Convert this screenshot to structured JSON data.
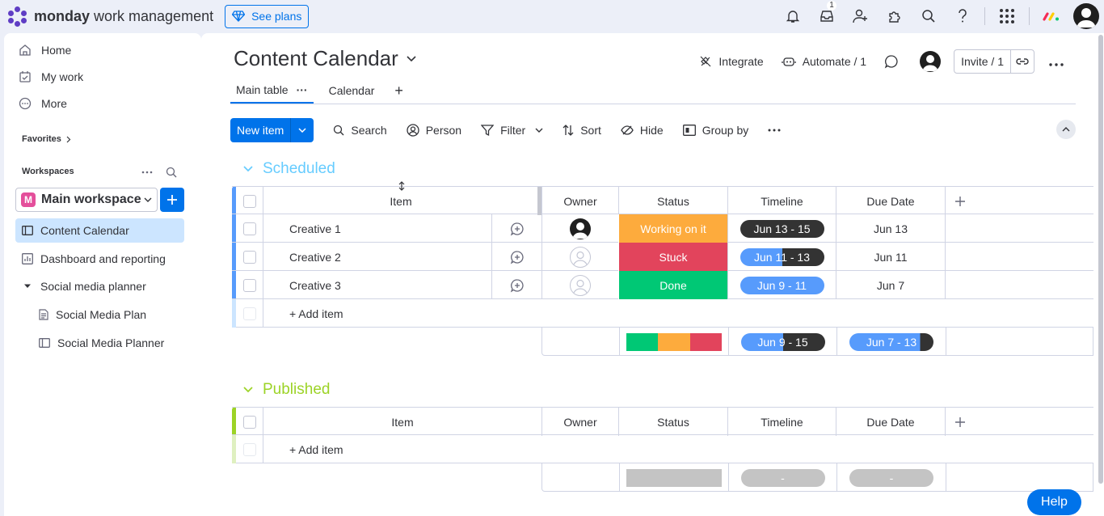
{
  "topbar": {
    "brand_bold": "monday",
    "brand_rest": " work management",
    "see_plans": "See plans",
    "inbox_count": "1",
    "icons": [
      "bell-icon",
      "inbox-icon",
      "invite-members-icon",
      "apps-icon",
      "search-icon",
      "help-icon",
      "app-grid-icon",
      "monday-products-icon",
      "avatar"
    ]
  },
  "sidebar": {
    "nav": [
      {
        "label": "Home",
        "icon": "home-icon"
      },
      {
        "label": "My work",
        "icon": "my-work-icon"
      },
      {
        "label": "More",
        "icon": "more-icon"
      }
    ],
    "favorites_label": "Favorites",
    "workspaces_label": "Workspaces",
    "workspace": {
      "badge": "M",
      "name": "Main workspace"
    },
    "tree": [
      {
        "label": "Content Calendar",
        "icon": "board-icon",
        "active": true
      },
      {
        "label": "Dashboard and reporting",
        "icon": "dashboard-icon"
      },
      {
        "label": "Social media planner",
        "icon": "caret-down-icon"
      },
      {
        "label": "Social Media Plan",
        "icon": "doc-icon"
      },
      {
        "label": "Social Media Planner",
        "icon": "board-icon"
      }
    ]
  },
  "board": {
    "title": "Content Calendar",
    "integrate": "Integrate",
    "automate": "Automate / 1",
    "invite": "Invite / 1",
    "tabs": [
      {
        "label": "Main table",
        "active": true
      },
      {
        "label": "Calendar",
        "active": false
      }
    ],
    "toolbar": {
      "new_item": "New item",
      "search": "Search",
      "person": "Person",
      "filter": "Filter",
      "sort": "Sort",
      "hide": "Hide",
      "group_by": "Group by"
    }
  },
  "columns": [
    "Item",
    "Owner",
    "Status",
    "Timeline",
    "Due Date"
  ],
  "colors": {
    "accent": "#0073ea",
    "scheduled_group": "#579bfc",
    "scheduled_title": "#66ccff",
    "published_group": "#9cd326",
    "working_on_it": "#fdab3d",
    "stuck": "#e2445c",
    "done": "#00c875",
    "timeline_blue": "#579bfc",
    "timeline_dark": "#333333",
    "empty_gray": "#c4c4c4"
  },
  "groups": [
    {
      "title": "Scheduled",
      "rows": [
        {
          "item": "Creative 1",
          "owner": "assigned",
          "status": "Working on it",
          "status_color": "#fdab3d",
          "timeline": "Jun 13 - 15",
          "timeline_progress": 0,
          "due": "Jun 13"
        },
        {
          "item": "Creative 2",
          "owner": "empty",
          "status": "Stuck",
          "status_color": "#e2445c",
          "timeline": "Jun 11 - 13",
          "timeline_progress": 0.5,
          "due": "Jun 11"
        },
        {
          "item": "Creative 3",
          "owner": "empty",
          "status": "Done",
          "status_color": "#00c875",
          "timeline": "Jun 9 - 11",
          "timeline_progress": 1,
          "due": "Jun 7"
        }
      ],
      "add_item": "+ Add item",
      "summary": {
        "timeline": "Jun 9 - 15",
        "due": "Jun 7 - 13"
      }
    },
    {
      "title": "Published",
      "rows": [],
      "add_item": "+ Add item",
      "summary": {
        "timeline": "-",
        "due": "-"
      }
    }
  ],
  "help": "Help"
}
